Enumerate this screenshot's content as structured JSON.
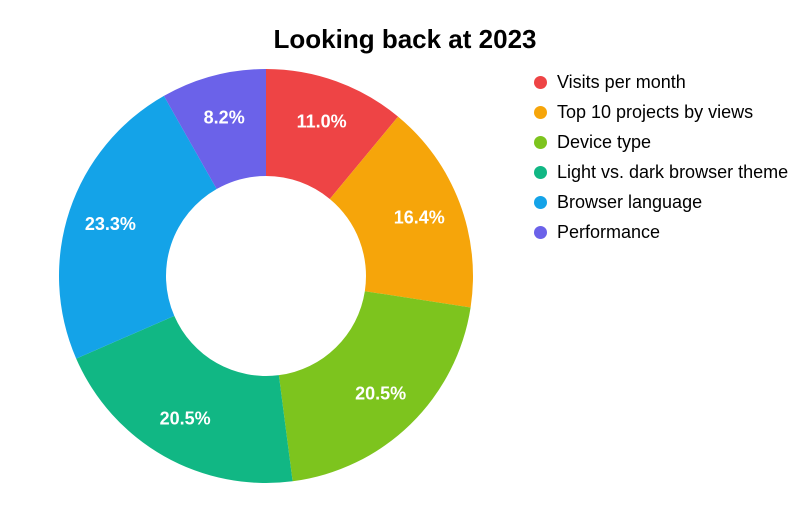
{
  "title": "Looking back at 2023",
  "chart_data": {
    "type": "pie",
    "subtype": "donut",
    "title": "Looking back at 2023",
    "legend_position": "right",
    "labels_format": "percent",
    "background_color": "#ffffff",
    "label_text_color": "#ffffff",
    "slices": [
      {
        "label": "Visits per month",
        "value": 11.0,
        "display": "11.0%",
        "color": "#EE4445"
      },
      {
        "label": "Top 10 projects by views",
        "value": 16.4,
        "display": "16.4%",
        "color": "#F6A50A"
      },
      {
        "label": "Device type",
        "value": 20.5,
        "display": "20.5%",
        "color": "#7DC41E"
      },
      {
        "label": "Light vs. dark browser theme",
        "value": 20.5,
        "display": "20.5%",
        "color": "#11B784"
      },
      {
        "label": "Browser language",
        "value": 23.3,
        "display": "23.3%",
        "color": "#14A3E8"
      },
      {
        "label": "Performance",
        "value": 8.2,
        "display": "8.2%",
        "color": "#6B62E9"
      }
    ]
  }
}
